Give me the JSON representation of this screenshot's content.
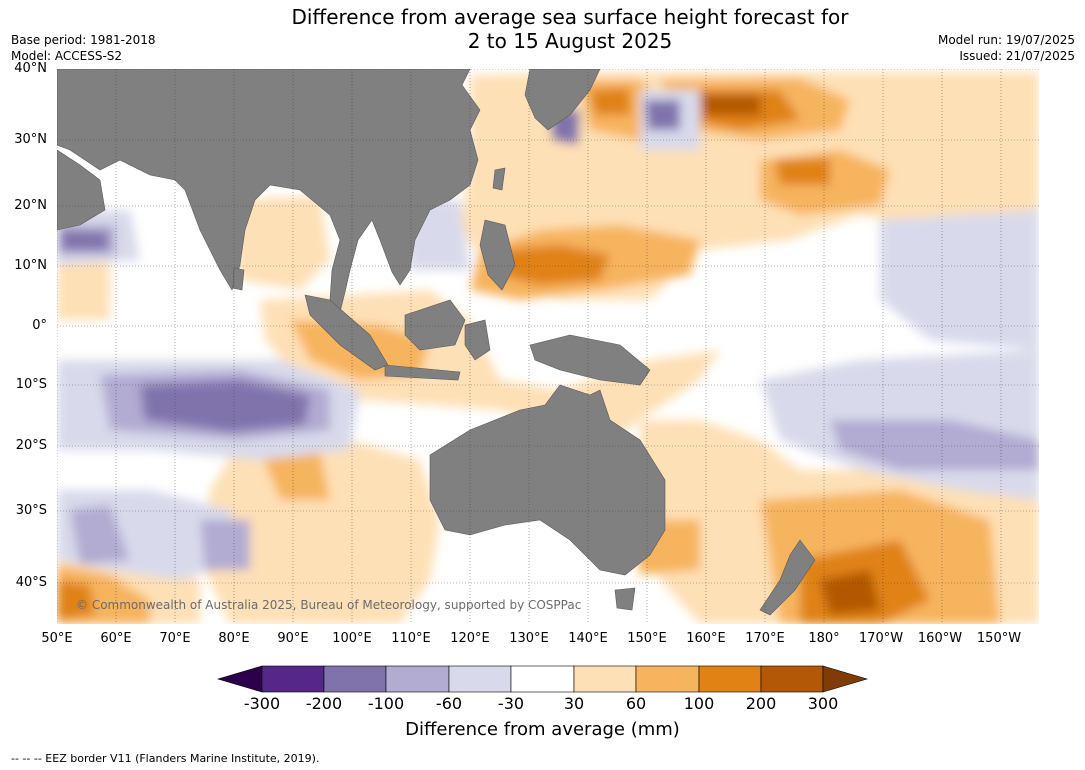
{
  "header": {
    "title_line1": "Difference from average sea surface height forecast for",
    "title_line2": "2 to 15 August 2025",
    "base_period": "Base period: 1981-2018",
    "model": "Model: ACCESS-S2",
    "model_run": "Model run: 19/07/2025",
    "issued": "Issued: 21/07/2025"
  },
  "map": {
    "region": "Indian Ocean and western Pacific",
    "copyright": "© Commonwealth of Australia 2025, Bureau of Meteorology, supported by COSPPac",
    "land_color": "#808080",
    "lat_labels": [
      "40°N",
      "30°N",
      "20°N",
      "10°N",
      "0°",
      "10°S",
      "20°S",
      "30°S",
      "40°S"
    ],
    "lon_labels": [
      "50°E",
      "60°E",
      "70°E",
      "80°E",
      "90°E",
      "100°E",
      "110°E",
      "120°E",
      "130°E",
      "140°E",
      "150°E",
      "160°E",
      "170°E",
      "180°",
      "170°W",
      "160°W",
      "150°W"
    ]
  },
  "colorbar": {
    "title": "Difference from average (mm)",
    "ticks": [
      "-300",
      "-200",
      "-100",
      "-60",
      "-30",
      "30",
      "60",
      "100",
      "200",
      "300"
    ],
    "colors": [
      "#542788",
      "#8073ac",
      "#b2abd2",
      "#d8daeb",
      "#ffffff",
      "#fee0b6",
      "#f7b45e",
      "#e08214",
      "#b35806"
    ],
    "underflow_color": "#2d004b",
    "overflow_color": "#7f3b08"
  },
  "footer": {
    "note": "--  --  -- EEZ border V11 (Flanders Marine Institute, 2019)."
  }
}
